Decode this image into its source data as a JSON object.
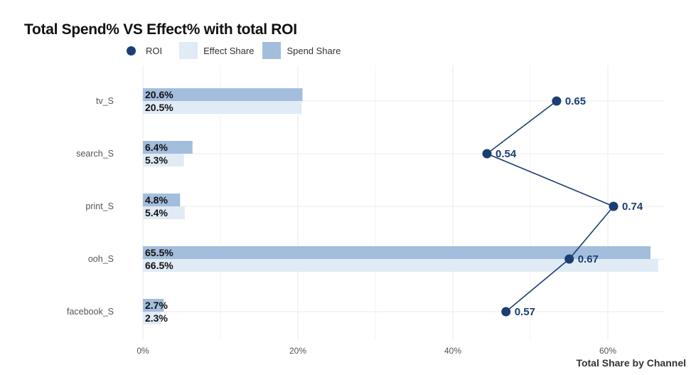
{
  "chart_data": {
    "type": "bar",
    "title": "Total Spend% VS Effect% with total ROI",
    "xlabel": "Total Share by Channel",
    "ylabel": "",
    "xlim": [
      0,
      66.5
    ],
    "x_ticks": [
      "0%",
      "20%",
      "40%",
      "60%"
    ],
    "x_tick_values": [
      0,
      20,
      40,
      60
    ],
    "categories": [
      "tv_S",
      "search_S",
      "print_S",
      "ooh_S",
      "facebook_S"
    ],
    "series": [
      {
        "name": "Spend Share",
        "values": [
          20.6,
          6.4,
          4.8,
          65.5,
          2.7
        ],
        "labels": [
          "20.6%",
          "6.4%",
          "4.8%",
          "65.5%",
          "2.7%"
        ],
        "color": "#a3bddc"
      },
      {
        "name": "Effect Share",
        "values": [
          20.5,
          5.3,
          5.4,
          66.5,
          2.3
        ],
        "labels": [
          "20.5%",
          "5.3%",
          "5.4%",
          "66.5%",
          "2.3%"
        ],
        "color": "#e1ebf5"
      },
      {
        "name": "ROI",
        "values": [
          0.65,
          0.54,
          0.74,
          0.67,
          0.57
        ],
        "labels": [
          "0.65",
          "0.54",
          "0.74",
          "0.67",
          "0.57"
        ],
        "color": "#1b3e73"
      }
    ],
    "legend_position": "top",
    "grid": true
  },
  "legend": {
    "roi": "ROI",
    "effect": "Effect Share",
    "spend": "Spend Share"
  },
  "colors": {
    "spend": "#a3bddc",
    "effect": "#e1ebf5",
    "roi": "#1b3e73",
    "grid": "#ebebeb"
  }
}
